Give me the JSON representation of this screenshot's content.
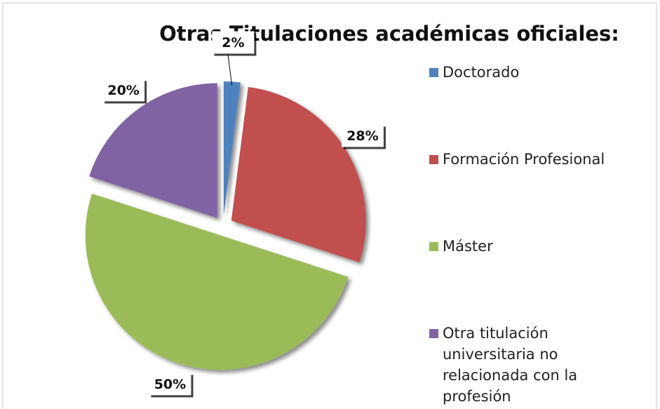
{
  "chart_data": {
    "type": "pie",
    "title": "Otras Titulaciones académicas oficiales:",
    "categories": [
      "Doctorado",
      "Formación Profesional",
      "Máster",
      "Otra titulación universitaria no relacionada con la profesión"
    ],
    "values": [
      2,
      28,
      50,
      20
    ],
    "value_labels": [
      "2%",
      "28%",
      "50%",
      "20%"
    ],
    "colors": [
      "#4f81bd",
      "#c0504d",
      "#9bbb59",
      "#8064a2"
    ],
    "legend": "right"
  }
}
